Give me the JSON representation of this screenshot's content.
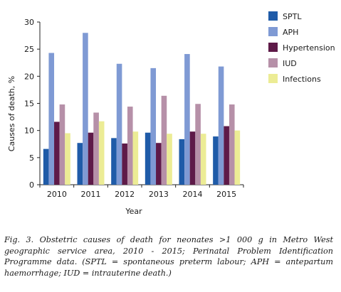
{
  "chart_data": {
    "type": "bar",
    "categories": [
      "2010",
      "2011",
      "2012",
      "2013",
      "2014",
      "2015"
    ],
    "series": [
      {
        "name": "SPTL",
        "color": "#1f5ba8",
        "values": [
          6.6,
          7.7,
          8.6,
          9.6,
          8.4,
          8.9
        ]
      },
      {
        "name": "APH",
        "color": "#7f9ad4",
        "values": [
          24.3,
          28.0,
          22.3,
          21.5,
          24.1,
          21.8
        ]
      },
      {
        "name": "Hypertension",
        "color": "#5e1a48",
        "values": [
          11.6,
          9.6,
          7.6,
          7.7,
          9.8,
          10.8
        ]
      },
      {
        "name": "IUD",
        "color": "#b690a8",
        "values": [
          14.8,
          13.3,
          14.4,
          16.4,
          14.9,
          14.8
        ]
      },
      {
        "name": "Infections",
        "color": "#ecec95",
        "values": [
          9.5,
          11.7,
          9.8,
          9.4,
          9.4,
          10.0
        ]
      }
    ],
    "xlabel": "Year",
    "ylabel": "Causes of death, %",
    "ylim": [
      0,
      30
    ],
    "yticks": [
      0,
      5,
      10,
      15,
      20,
      25,
      30
    ],
    "legend_position": "right",
    "grid": false
  },
  "caption": "Fig. 3. Obstetric causes of death for neonates >1 000 g in Metro West geographic service area, 2010 - 2015; Perinatal Problem Identification Programme data. (SPTL = spontaneous preterm labour; APH = antepartum haemorrhage; IUD = intrauterine death.)"
}
